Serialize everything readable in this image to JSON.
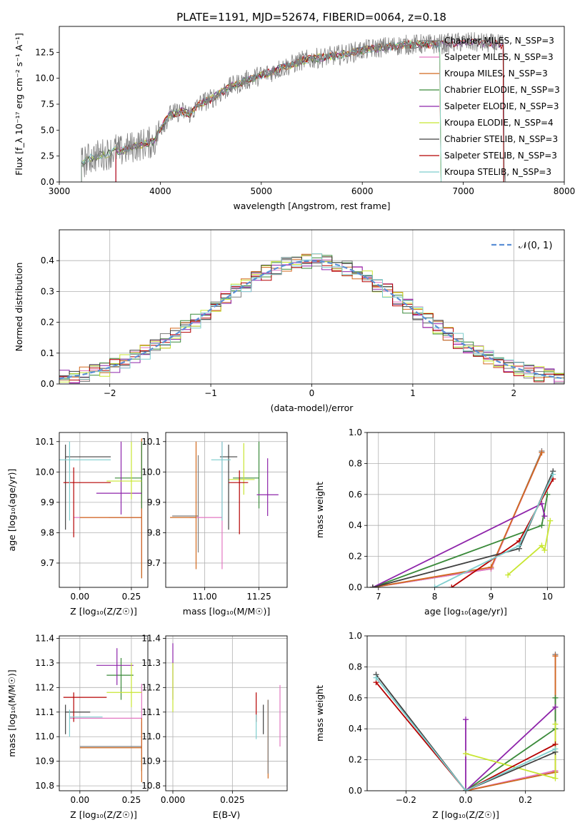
{
  "figure": {
    "title": "PLATE=1191, MJD=52674, FIBERID=0064, z=0.18",
    "model_colors": [
      "#7f7f7f",
      "#e377c2",
      "#d2691e",
      "#3a8a3a",
      "#8e24aa",
      "#c8e632",
      "#404040",
      "#b50000",
      "#7ecece"
    ]
  },
  "chart_data": [
    {
      "id": "spectrum",
      "type": "line",
      "title": "PLATE=1191, MJD=52674, FIBERID=0064, z=0.18",
      "xlabel": "wavelength [Angstrom, rest frame]",
      "ylabel": "Flux [f_λ 10⁻¹⁷ erg cm⁻² s⁻¹ A⁻¹]",
      "xlim": [
        3000,
        8000
      ],
      "ylim": [
        0,
        15
      ],
      "x_ticks": [
        "3000",
        "4000",
        "5000",
        "6000",
        "7000",
        "8000"
      ],
      "y_ticks": [
        "0.0",
        "2.5",
        "5.0",
        "7.5",
        "10.0",
        "12.5"
      ],
      "legend_position": "top-right",
      "legend": [
        {
          "name": "Chabrier MILES, N_SSP=3",
          "color": "#7f7f7f"
        },
        {
          "name": "Salpeter MILES, N_SSP=3",
          "color": "#e377c2"
        },
        {
          "name": "Kroupa MILES, N_SSP=3",
          "color": "#d2691e"
        },
        {
          "name": "Chabrier ELODIE, N_SSP=3",
          "color": "#3a8a3a"
        },
        {
          "name": "Salpeter ELODIE, N_SSP=3",
          "color": "#8e24aa"
        },
        {
          "name": "Kroupa ELODIE, N_SSP=4",
          "color": "#c8e632"
        },
        {
          "name": "Chabrier STELIB, N_SSP=3",
          "color": "#404040"
        },
        {
          "name": "Salpeter STELIB, N_SSP=3",
          "color": "#b50000"
        },
        {
          "name": "Kroupa STELIB, N_SSP=3",
          "color": "#7ecece"
        }
      ],
      "continuum": {
        "x": [
          3220,
          3300,
          3400,
          3500,
          3560,
          3600,
          3700,
          3800,
          3900,
          3950,
          4000,
          4100,
          4200,
          4300,
          4400,
          4500,
          4600,
          4700,
          4800,
          4900,
          5000,
          5100,
          5200,
          5300,
          5400,
          5600,
          5800,
          6000,
          6200,
          6400,
          6600,
          6800,
          7000,
          7200,
          7400
        ],
        "y": [
          1.8,
          2.3,
          2.6,
          2.8,
          3.2,
          2.9,
          3.3,
          3.6,
          3.8,
          4.0,
          5.2,
          6.5,
          6.8,
          6.6,
          7.6,
          8.0,
          8.6,
          9.2,
          9.6,
          10.0,
          10.3,
          10.6,
          11.0,
          11.3,
          11.7,
          12.0,
          12.3,
          12.7,
          13.0,
          13.2,
          13.3,
          13.3,
          13.5,
          13.4,
          13.2
        ]
      }
    },
    {
      "id": "residuals",
      "type": "line",
      "xlabel": "(data-model)/error",
      "ylabel": "Normed distribution",
      "xlim": [
        -2.5,
        2.5
      ],
      "ylim": [
        0,
        0.5
      ],
      "x_ticks": [
        "−2",
        "−1",
        "0",
        "1",
        "2"
      ],
      "y_ticks": [
        "0.0",
        "0.1",
        "0.2",
        "0.3",
        "0.4"
      ],
      "grid": true,
      "legend_position": "top-right",
      "legend": [
        {
          "name": "𝒩(0, 1)",
          "color": "#5b8fd6",
          "style": "dashed"
        }
      ]
    },
    {
      "id": "age-vs-Z",
      "type": "scatter",
      "xlabel": "Z [log₁₀(Z/Z☉)]",
      "ylabel": "age [log₁₀(age/yr)]",
      "xlim": [
        -0.1,
        0.33
      ],
      "ylim": [
        9.62,
        10.13
      ],
      "x_ticks": [
        "0.00",
        "0.25"
      ],
      "y_ticks": [
        "9.7",
        "9.8",
        "9.9",
        "10.0",
        "10.1"
      ],
      "grid": true,
      "points": [
        {
          "x": 0.3,
          "y": 9.85,
          "xerr": [
            0.16,
            0.0
          ],
          "yerr": [
            0.2,
            0.25
          ],
          "color": "#7f7f7f"
        },
        {
          "x": 0.3,
          "y": 9.85,
          "xerr": [
            0.33,
            0.0
          ],
          "yerr": [
            0.15,
            0.25
          ],
          "color": "#e377c2"
        },
        {
          "x": 0.3,
          "y": 9.85,
          "xerr": [
            0.3,
            0.0
          ],
          "yerr": [
            0.2,
            0.26
          ],
          "color": "#d2691e"
        },
        {
          "x": 0.3,
          "y": 9.98,
          "xerr": [
            0.13,
            0.0
          ],
          "yerr": [
            0.1,
            0.12
          ],
          "color": "#3a8a3a"
        },
        {
          "x": 0.2,
          "y": 9.93,
          "xerr": [
            0.12,
            0.1
          ],
          "yerr": [
            0.07,
            0.17
          ],
          "color": "#8e24aa"
        },
        {
          "x": 0.25,
          "y": 9.97,
          "xerr": [
            0.12,
            0.05
          ],
          "yerr": [
            0.06,
            0.13
          ],
          "color": "#c8e632"
        },
        {
          "x": -0.07,
          "y": 10.05,
          "xerr": [
            0.0,
            0.22
          ],
          "yerr": [
            0.24,
            0.04
          ],
          "color": "#404040"
        },
        {
          "x": -0.03,
          "y": 9.965,
          "xerr": [
            0.05,
            0.18
          ],
          "yerr": [
            0.18,
            0.05
          ],
          "color": "#b50000"
        },
        {
          "x": -0.05,
          "y": 10.04,
          "xerr": [
            0.05,
            0.2
          ],
          "yerr": [
            0.2,
            0.06
          ],
          "color": "#7ecece"
        }
      ]
    },
    {
      "id": "age-vs-mass",
      "type": "scatter",
      "xlabel": "mass [log₁₀(M/M☉)]",
      "ylabel": "",
      "xlim": [
        10.82,
        11.38
      ],
      "ylim": [
        9.62,
        10.13
      ],
      "x_ticks": [
        "11.00",
        "11.25"
      ],
      "y_ticks": [
        "9.7",
        "9.8",
        "9.9",
        "10.0",
        "10.1"
      ],
      "grid": true,
      "points": [
        {
          "x": 10.97,
          "y": 9.855,
          "xerr": [
            0.12,
            0.0
          ],
          "yerr": [
            0.12,
            0.2
          ],
          "color": "#7f7f7f"
        },
        {
          "x": 11.08,
          "y": 9.85,
          "xerr": [
            0.15,
            0.0
          ],
          "yerr": [
            0.17,
            0.25
          ],
          "color": "#e377c2"
        },
        {
          "x": 10.96,
          "y": 9.85,
          "xerr": [
            0.12,
            0.0
          ],
          "yerr": [
            0.17,
            0.25
          ],
          "color": "#d2691e"
        },
        {
          "x": 11.25,
          "y": 9.98,
          "xerr": [
            0.12,
            0.0
          ],
          "yerr": [
            0.1,
            0.12
          ],
          "color": "#3a8a3a"
        },
        {
          "x": 11.29,
          "y": 9.925,
          "xerr": [
            0.05,
            0.05
          ],
          "yerr": [
            0.07,
            0.12
          ],
          "color": "#8e24aa"
        },
        {
          "x": 11.18,
          "y": 9.975,
          "xerr": [
            0.07,
            0.05
          ],
          "yerr": [
            0.05,
            0.12
          ],
          "color": "#c8e632"
        },
        {
          "x": 11.11,
          "y": 10.05,
          "xerr": [
            0.04,
            0.04
          ],
          "yerr": [
            0.24,
            0.04
          ],
          "color": "#404040"
        },
        {
          "x": 11.16,
          "y": 9.965,
          "xerr": [
            0.05,
            0.04
          ],
          "yerr": [
            0.17,
            0.04
          ],
          "color": "#b50000"
        },
        {
          "x": 11.08,
          "y": 10.04,
          "xerr": [
            0.05,
            0.04
          ],
          "yerr": [
            0.2,
            0.06
          ],
          "color": "#7ecece"
        }
      ]
    },
    {
      "id": "weight-vs-age",
      "type": "line",
      "xlabel": "age [log₁₀(age/yr)]",
      "ylabel": "mass weight",
      "xlim": [
        6.8,
        10.3
      ],
      "ylim": [
        0,
        1.0
      ],
      "x_ticks": [
        "7",
        "8",
        "9",
        "10"
      ],
      "y_ticks": [
        "0.0",
        "0.2",
        "0.4",
        "0.6",
        "0.8",
        "1.0"
      ],
      "grid": true,
      "series": [
        {
          "color": "#7f7f7f",
          "x": [
            6.9,
            9.0,
            9.9
          ],
          "y": [
            0.0,
            0.12,
            0.88
          ]
        },
        {
          "color": "#e377c2",
          "x": [
            6.9,
            9.0,
            9.9
          ],
          "y": [
            0.0,
            0.12,
            0.87
          ]
        },
        {
          "color": "#d2691e",
          "x": [
            6.9,
            9.0,
            9.9
          ],
          "y": [
            0.0,
            0.13,
            0.87
          ]
        },
        {
          "color": "#3a8a3a",
          "x": [
            6.9,
            9.9,
            10.0
          ],
          "y": [
            0.0,
            0.4,
            0.6
          ]
        },
        {
          "color": "#8e24aa",
          "x": [
            6.9,
            9.9,
            9.95
          ],
          "y": [
            0.0,
            0.54,
            0.46
          ]
        },
        {
          "color": "#c8e632",
          "x": [
            9.3,
            9.9,
            9.95,
            10.05
          ],
          "y": [
            0.08,
            0.27,
            0.24,
            0.43
          ]
        },
        {
          "color": "#404040",
          "x": [
            6.9,
            9.5,
            10.1
          ],
          "y": [
            0.0,
            0.25,
            0.75
          ]
        },
        {
          "color": "#b50000",
          "x": [
            8.3,
            9.5,
            10.1
          ],
          "y": [
            0.0,
            0.3,
            0.7
          ]
        },
        {
          "color": "#7ecece",
          "x": [
            8.0,
            9.5,
            10.1
          ],
          "y": [
            0.0,
            0.27,
            0.73
          ]
        }
      ]
    },
    {
      "id": "mass-vs-Z",
      "type": "scatter",
      "xlabel": "Z [log₁₀(Z/Z☉)]",
      "ylabel": "mass [log₁₀(M/M☉)]",
      "xlim": [
        -0.1,
        0.33
      ],
      "ylim": [
        10.78,
        11.41
      ],
      "x_ticks": [
        "0.00",
        "0.25"
      ],
      "y_ticks": [
        "10.8",
        "10.9",
        "11.0",
        "11.1",
        "11.2",
        "11.3",
        "11.4"
      ],
      "grid": true,
      "points": [
        {
          "x": 0.3,
          "y": 10.96,
          "xerr": [
            0.3,
            0.0
          ],
          "yerr": [
            0.1,
            0.1
          ],
          "color": "#7f7f7f"
        },
        {
          "x": 0.3,
          "y": 11.075,
          "xerr": [
            0.35,
            0.0
          ],
          "yerr": [
            0.15,
            0.14
          ],
          "color": "#e377c2"
        },
        {
          "x": 0.3,
          "y": 10.955,
          "xerr": [
            0.3,
            0.0
          ],
          "yerr": [
            0.14,
            0.12
          ],
          "color": "#d2691e"
        },
        {
          "x": 0.2,
          "y": 11.25,
          "xerr": [
            0.07,
            0.06
          ],
          "yerr": [
            0.1,
            0.07
          ],
          "color": "#3a8a3a"
        },
        {
          "x": 0.18,
          "y": 11.29,
          "xerr": [
            0.1,
            0.08
          ],
          "yerr": [
            0.08,
            0.07
          ],
          "color": "#8e24aa"
        },
        {
          "x": 0.25,
          "y": 11.18,
          "xerr": [
            0.12,
            0.05
          ],
          "yerr": [
            0.06,
            0.12
          ],
          "color": "#c8e632"
        },
        {
          "x": -0.07,
          "y": 11.1,
          "xerr": [
            0.0,
            0.12
          ],
          "yerr": [
            0.09,
            0.03
          ],
          "color": "#404040"
        },
        {
          "x": -0.03,
          "y": 11.16,
          "xerr": [
            0.05,
            0.16
          ],
          "yerr": [
            0.1,
            0.02
          ],
          "color": "#b50000"
        },
        {
          "x": -0.05,
          "y": 11.08,
          "xerr": [
            0.0,
            0.16
          ],
          "yerr": [
            0.08,
            0.03
          ],
          "color": "#7ecece"
        }
      ]
    },
    {
      "id": "mass-vs-ebv",
      "type": "scatter",
      "xlabel": "E(B-V)",
      "ylabel": "",
      "xlim": [
        -0.003,
        0.048
      ],
      "ylim": [
        10.78,
        11.41
      ],
      "x_ticks": [
        "0.000",
        "0.025"
      ],
      "y_ticks": [
        "10.8",
        "10.9",
        "11.0",
        "11.1",
        "11.2",
        "11.3",
        "11.4"
      ],
      "grid": true,
      "points": [
        {
          "x": 0.0,
          "y": 11.25,
          "xerr": [
            0,
            0
          ],
          "yerr": [
            0.1,
            0.13
          ],
          "color": "#8e24aa"
        },
        {
          "x": 0.0,
          "y": 11.2,
          "xerr": [
            0,
            0
          ],
          "yerr": [
            0.1,
            0.1
          ],
          "color": "#c8e632"
        },
        {
          "x": 0.035,
          "y": 11.12,
          "xerr": [
            0,
            0
          ],
          "yerr": [
            0.06,
            0.06
          ],
          "color": "#b50000"
        },
        {
          "x": 0.035,
          "y": 11.04,
          "xerr": [
            0,
            0
          ],
          "yerr": [
            0.05,
            0.05
          ],
          "color": "#7ecece"
        },
        {
          "x": 0.038,
          "y": 11.07,
          "xerr": [
            0,
            0
          ],
          "yerr": [
            0.06,
            0.06
          ],
          "color": "#404040"
        },
        {
          "x": 0.04,
          "y": 10.98,
          "xerr": [
            0,
            0
          ],
          "yerr": [
            0.15,
            0.17
          ],
          "color": "#d2691e"
        },
        {
          "x": 0.04,
          "y": 11.0,
          "xerr": [
            0,
            0
          ],
          "yerr": [
            0.15,
            0.15
          ],
          "color": "#7f7f7f"
        },
        {
          "x": 0.045,
          "y": 11.09,
          "xerr": [
            0,
            0
          ],
          "yerr": [
            0.13,
            0.12
          ],
          "color": "#e377c2"
        }
      ]
    },
    {
      "id": "weight-vs-Z",
      "type": "line",
      "xlabel": "Z [log₁₀(Z/Z☉)]",
      "ylabel": "mass weight",
      "xlim": [
        -0.33,
        0.33
      ],
      "ylim": [
        0,
        1.0
      ],
      "x_ticks": [
        "−0.2",
        "0.0",
        "0.2"
      ],
      "y_ticks": [
        "0.0",
        "0.2",
        "0.4",
        "0.6",
        "0.8",
        "1.0"
      ],
      "grid": true,
      "series": [
        {
          "color": "#7f7f7f",
          "x": [
            0.0,
            0.3,
            0.3
          ],
          "y": [
            0.0,
            0.12,
            0.88
          ]
        },
        {
          "color": "#e377c2",
          "x": [
            0.0,
            0.3,
            0.3
          ],
          "y": [
            0.0,
            0.13,
            0.87
          ]
        },
        {
          "color": "#d2691e",
          "x": [
            0.0,
            0.3,
            0.3
          ],
          "y": [
            0.0,
            0.12,
            0.87
          ]
        },
        {
          "color": "#3a8a3a",
          "x": [
            0.0,
            0.3,
            0.3
          ],
          "y": [
            0.0,
            0.4,
            0.6
          ]
        },
        {
          "color": "#8e24aa",
          "x": [
            0.0,
            0.0,
            0.3
          ],
          "y": [
            0.46,
            0.0,
            0.54
          ]
        },
        {
          "color": "#c8e632",
          "x": [
            0.0,
            0.3,
            0.3
          ],
          "y": [
            0.24,
            0.08,
            0.43
          ]
        },
        {
          "color": "#404040",
          "x": [
            -0.3,
            0.0,
            0.3
          ],
          "y": [
            0.75,
            0.0,
            0.25
          ]
        },
        {
          "color": "#b50000",
          "x": [
            -0.3,
            0.0,
            0.3
          ],
          "y": [
            0.7,
            0.0,
            0.3
          ]
        },
        {
          "color": "#7ecece",
          "x": [
            -0.3,
            0.0,
            0.3
          ],
          "y": [
            0.73,
            0.0,
            0.27
          ]
        }
      ]
    }
  ]
}
